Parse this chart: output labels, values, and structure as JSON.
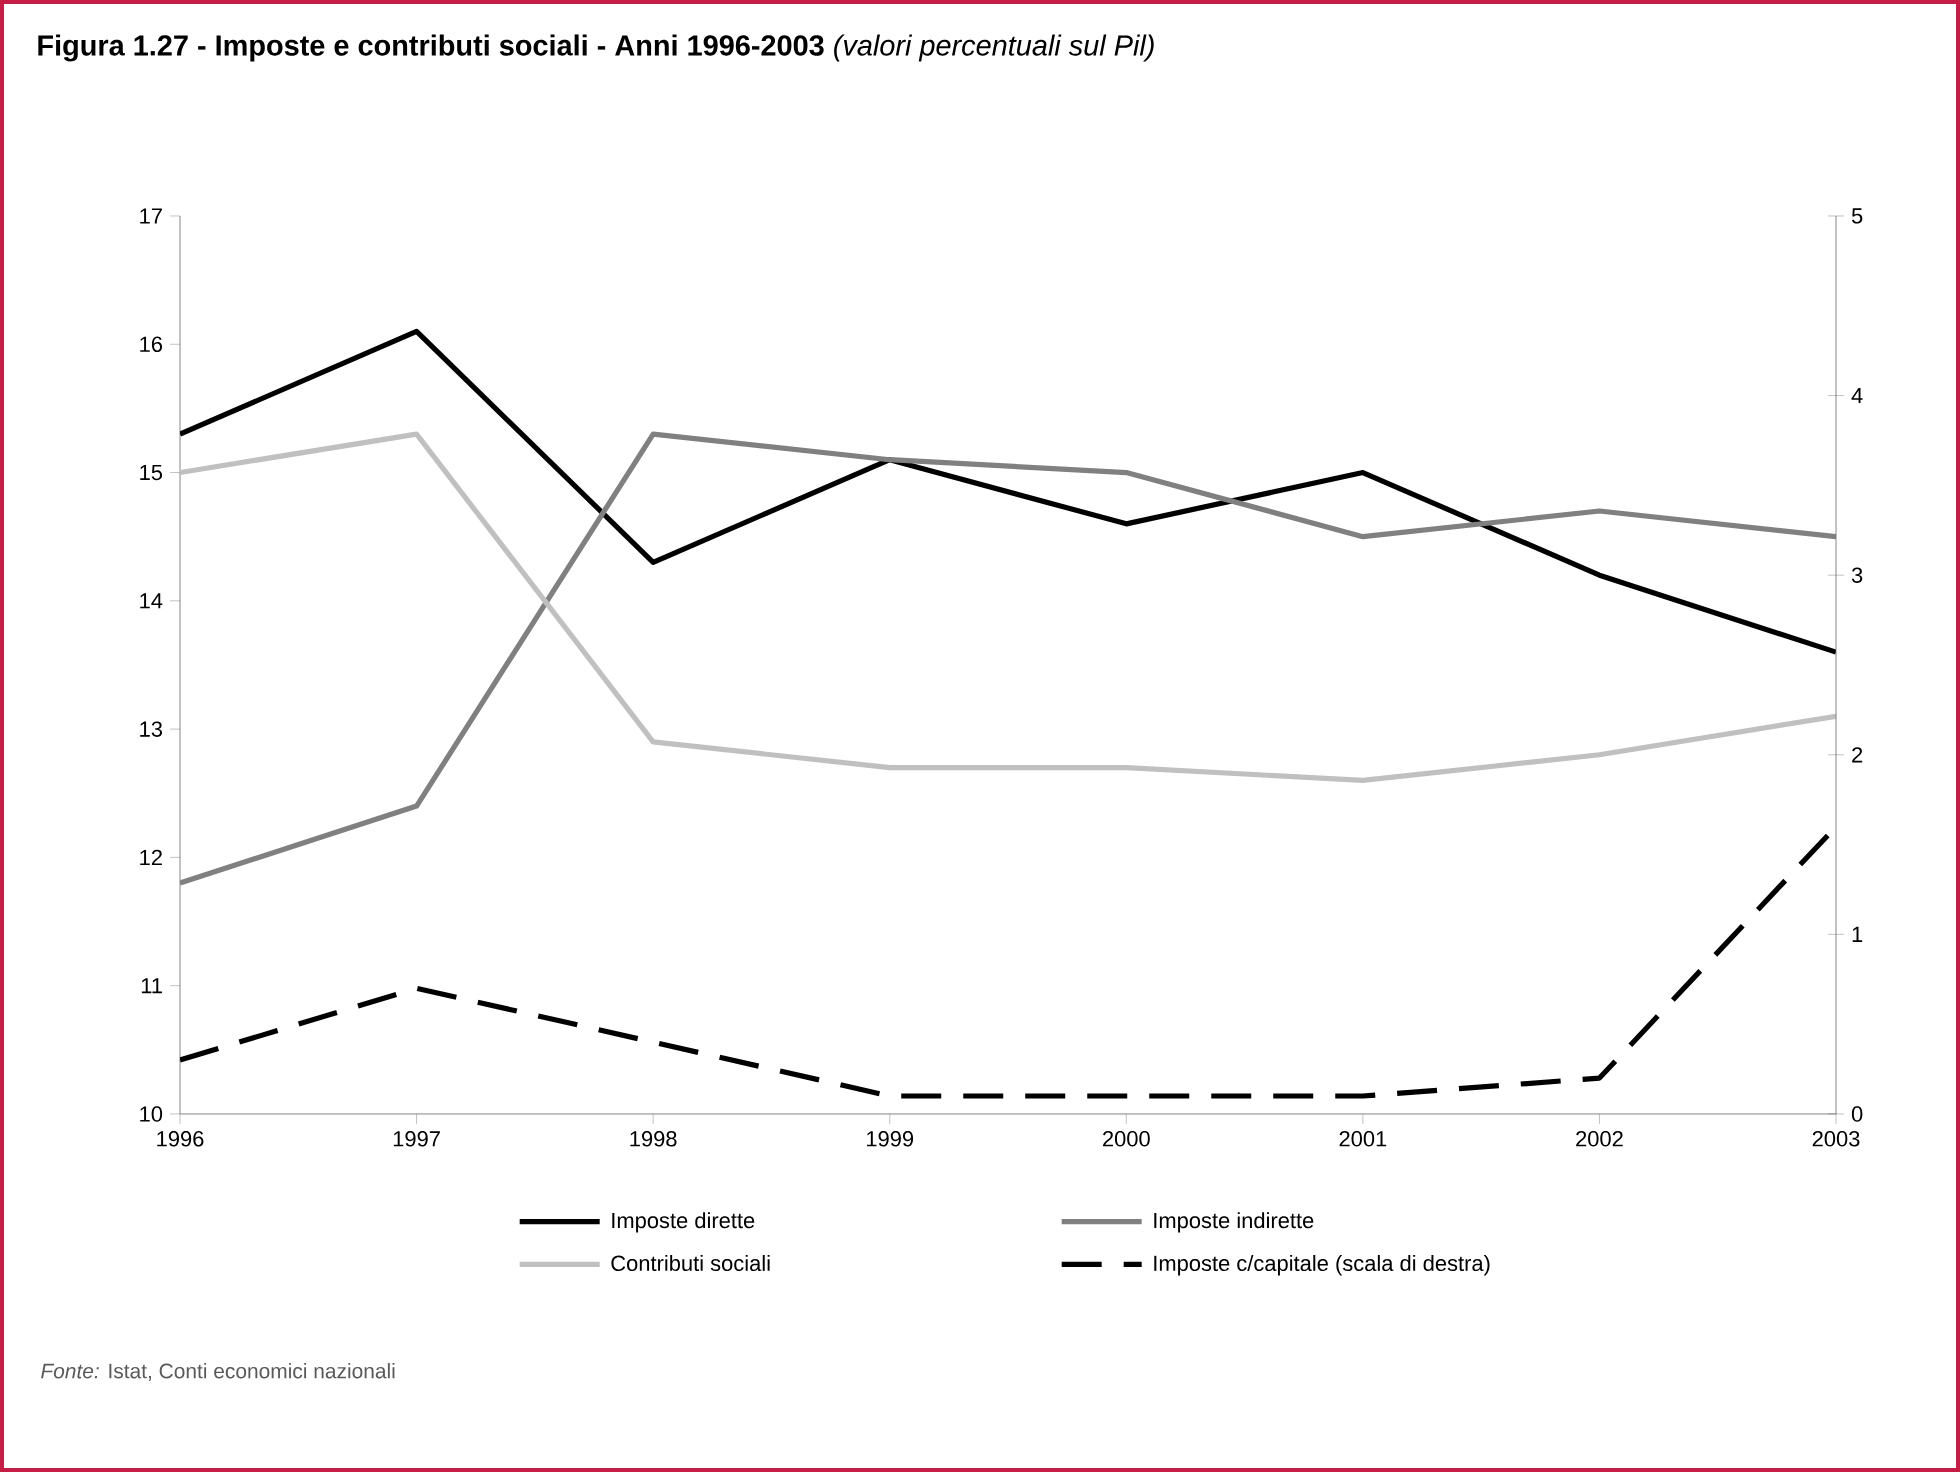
{
  "chart_data": {
    "type": "line",
    "title": "Figura 1.27 - Imposte e contributi sociali - Anni 1996-2003",
    "subtitle": "(valori percentuali sul Pil)",
    "x": [
      1996,
      1997,
      1998,
      1999,
      2000,
      2001,
      2002,
      2003
    ],
    "series": [
      {
        "name": "Imposte dirette",
        "color": "#000000",
        "line_style": "solid",
        "values": [
          15.3,
          16.1,
          14.3,
          15.1,
          14.6,
          15.0,
          14.2,
          13.6
        ]
      },
      {
        "name": "Imposte indirette",
        "color": "#808080",
        "line_style": "solid",
        "values": [
          11.8,
          12.4,
          15.3,
          15.1,
          15.0,
          14.5,
          14.7,
          14.5
        ]
      },
      {
        "name": "Contributi sociali",
        "color": "#c0c0c0",
        "line_style": "solid",
        "values": [
          15.0,
          15.3,
          12.9,
          12.7,
          12.7,
          12.6,
          12.8,
          13.1
        ]
      },
      {
        "name": "Imposte c/capitale (scala di destra)",
        "color": "#000000",
        "line_style": "dashed",
        "axis": "y2",
        "values": [
          0.3,
          0.7,
          0.4,
          0.1,
          0.1,
          0.1,
          0.2,
          1.6
        ]
      }
    ],
    "xlim": [
      1996,
      2003
    ],
    "xticks": [
      1996,
      1997,
      1998,
      1999,
      2000,
      2001,
      2002,
      2003
    ],
    "ylim": [
      10,
      17
    ],
    "yticks": [
      10,
      11,
      12,
      13,
      14,
      15,
      16,
      17
    ],
    "y2lim": [
      0,
      5
    ],
    "y2ticks": [
      0,
      1,
      2,
      3,
      4,
      5
    ],
    "grid": false,
    "legend": "bottom",
    "marker": "none",
    "annotations": [
      "*Fonte:* Istat, Conti economici nazionali"
    ]
  }
}
